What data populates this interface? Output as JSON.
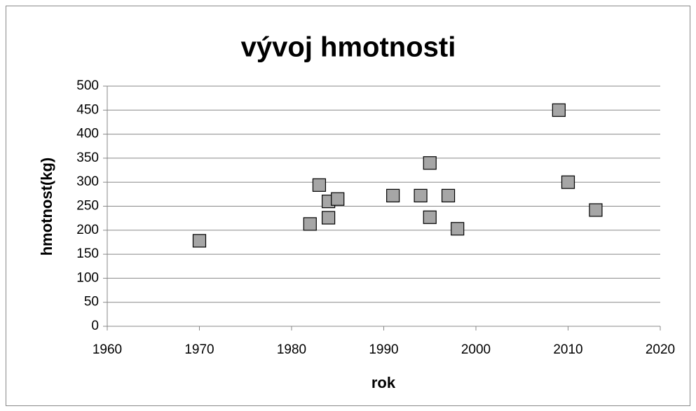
{
  "chart_data": {
    "type": "scatter",
    "title": "vývoj hmotnosti",
    "x_label": "rok",
    "y_label": "hmotnost(kg)",
    "series": [
      {
        "name": "hmotnost",
        "color": "#a6a6a6",
        "x": [
          1970,
          1982,
          1983,
          1984,
          1984,
          1985,
          1991,
          1994,
          1995,
          1995,
          1997,
          1998,
          2009,
          2010,
          2013
        ],
        "values": [
          178,
          213,
          294,
          260,
          226,
          265,
          272,
          272,
          340,
          227,
          272,
          203,
          450,
          300,
          242
        ]
      }
    ],
    "xlim": [
      1960,
      2020
    ],
    "xticks": [
      1960,
      1970,
      1980,
      1990,
      2000,
      2010,
      2020
    ],
    "ylim": [
      0,
      500
    ],
    "yticks": [
      0,
      50,
      100,
      150,
      200,
      250,
      300,
      350,
      400,
      450,
      500
    ],
    "grid": true
  }
}
